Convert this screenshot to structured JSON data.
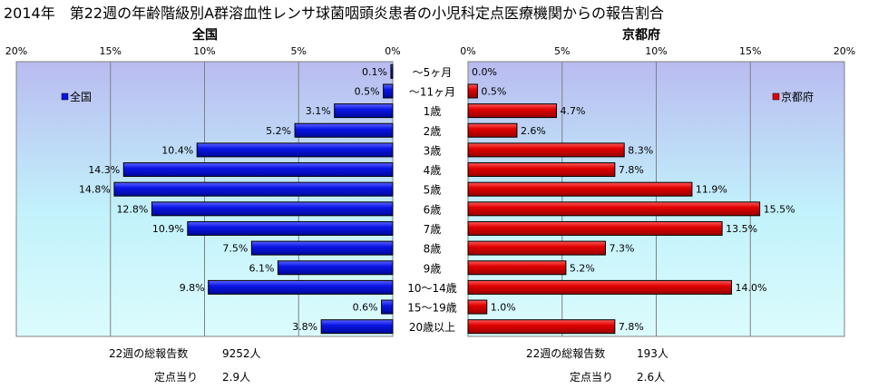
{
  "title": "2014年　第22週の年齢階級別A群溶血性レンサ球菌咽頭炎患者の小児科定点医療機関からの報告割合",
  "chart_data": {
    "type": "bar",
    "orientation": "horizontal-butterfly",
    "categories": [
      "～5ヶ月",
      "～11ヶ月",
      "1歳",
      "2歳",
      "3歳",
      "4歳",
      "5歳",
      "6歳",
      "7歳",
      "8歳",
      "9歳",
      "10～14歳",
      "15～19歳",
      "20歳以上"
    ],
    "series": [
      {
        "name": "全国",
        "panel_title": "全国",
        "values": [
          0.1,
          0.5,
          3.1,
          5.2,
          10.4,
          14.3,
          14.8,
          12.8,
          10.9,
          7.5,
          6.1,
          9.8,
          0.6,
          3.8
        ],
        "labels": [
          "0.1%",
          "0.5%",
          "3.1%",
          "5.2%",
          "10.4%",
          "14.3%",
          "14.8%",
          "12.8%",
          "10.9%",
          "7.5%",
          "6.1%",
          "9.8%",
          "0.6%",
          "3.8%"
        ],
        "color": "#0a14e6",
        "direction": "left"
      },
      {
        "name": "京都府",
        "panel_title": "京都府",
        "values": [
          0.0,
          0.5,
          4.7,
          2.6,
          8.3,
          7.8,
          11.9,
          15.5,
          13.5,
          7.3,
          5.2,
          14.0,
          1.0,
          7.8
        ],
        "labels": [
          "0.0%",
          "0.5%",
          "4.7%",
          "2.6%",
          "8.3%",
          "7.8%",
          "11.9%",
          "15.5%",
          "13.5%",
          "7.3%",
          "5.2%",
          "14.0%",
          "1.0%",
          "7.8%"
        ],
        "color": "#e00000",
        "direction": "right"
      }
    ],
    "xlim": [
      0,
      20
    ],
    "xticks": [
      0,
      5,
      10,
      15,
      20
    ],
    "left_ticks": [
      "20%",
      "15%",
      "10%",
      "5%",
      "0%"
    ],
    "right_ticks": [
      "0%",
      "5%",
      "10%",
      "15%",
      "20%"
    ],
    "grid": true,
    "legend": [
      "top-left",
      "top-right"
    ]
  },
  "summary": {
    "national": {
      "total_label": "22週の総報告数",
      "total_value": "9252人",
      "per_site_label": "定点当り",
      "per_site_value": "2.9人"
    },
    "kyoto": {
      "total_label": "22週の総報告数",
      "total_value": "193人",
      "per_site_label": "定点当り",
      "per_site_value": "2.6人"
    }
  }
}
